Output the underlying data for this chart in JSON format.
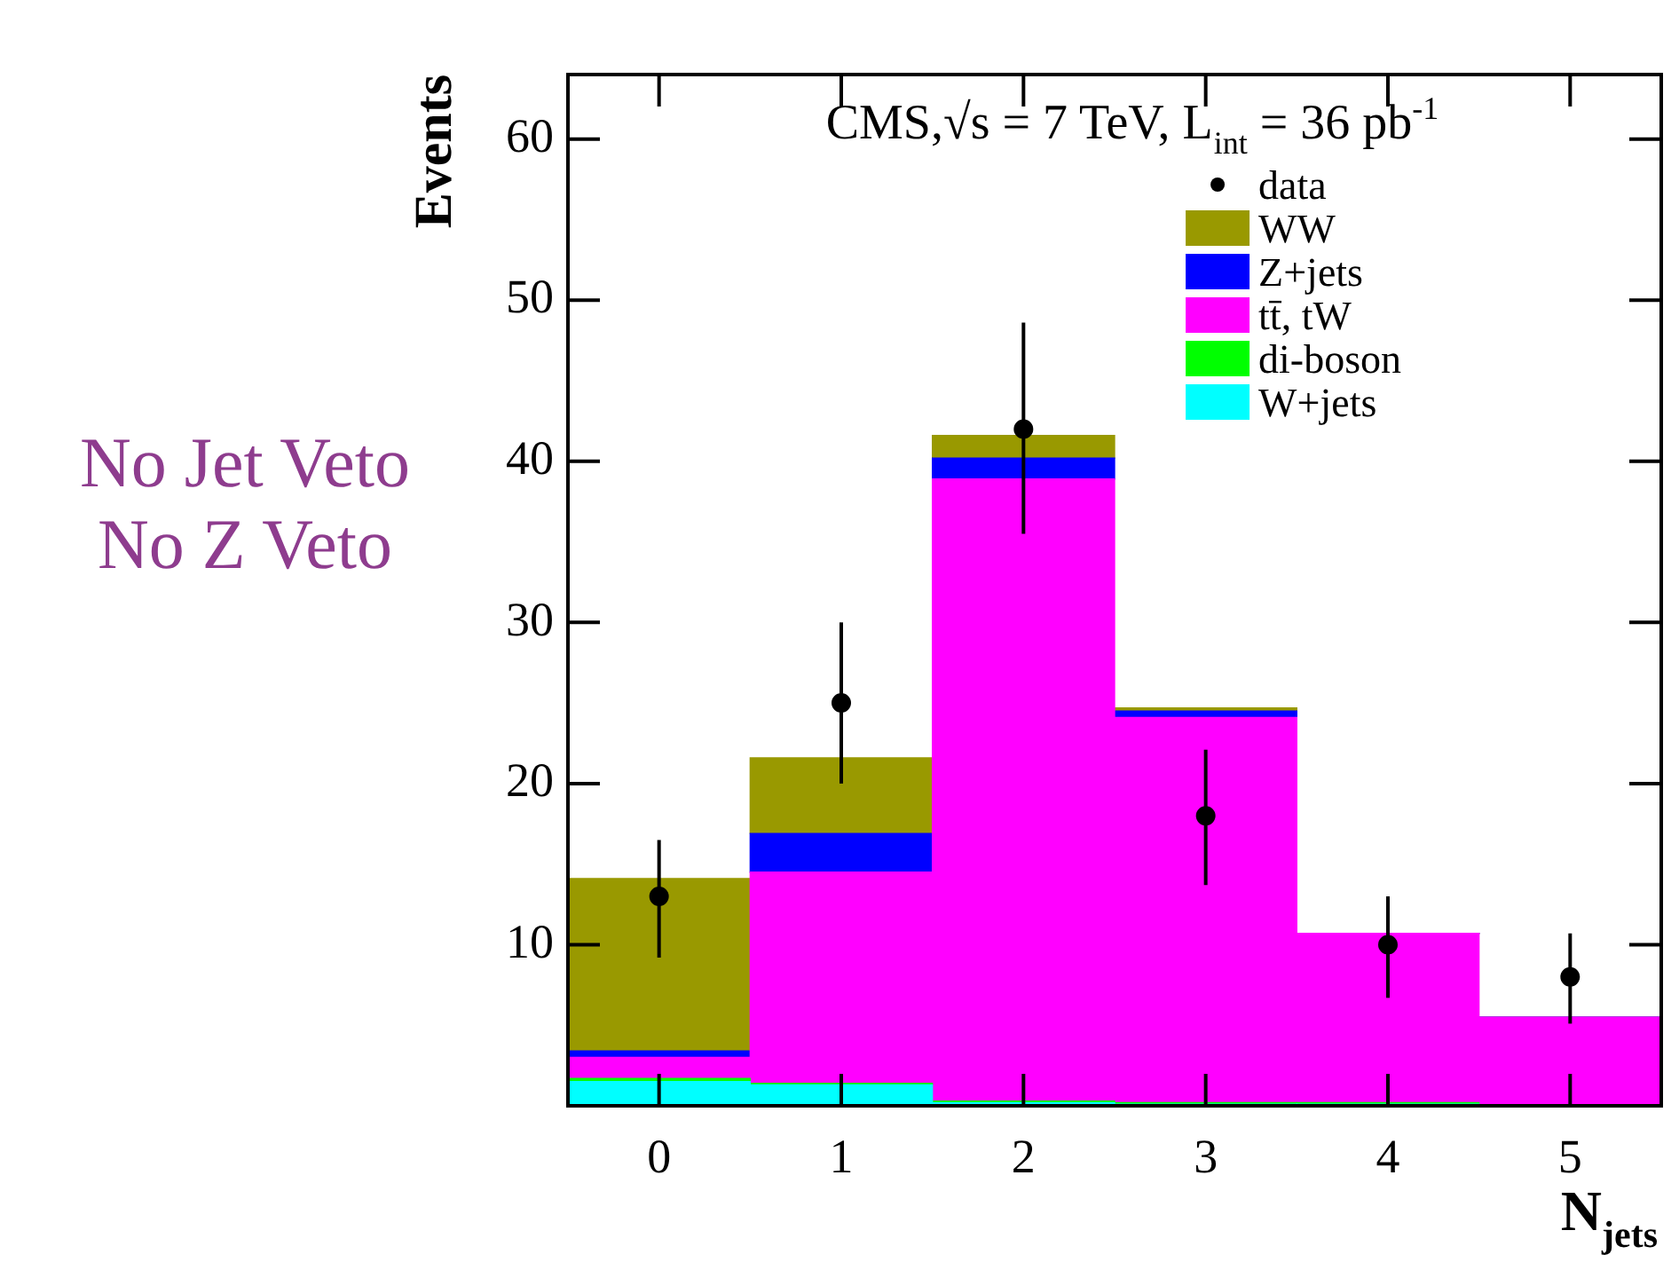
{
  "chart_data": {
    "type": "bar",
    "title": "CMS,√s = 7 TeV, L$_{int}$ = 36 pb$^{-1}$",
    "xlabel": "N$_{jets}$",
    "ylabel": "Events",
    "annotations": [
      "No Jet Veto",
      "No Z Veto"
    ],
    "categories": [
      "0",
      "1",
      "2",
      "3",
      "4",
      "5"
    ],
    "stacked": true,
    "series": [
      {
        "name": "W+jets",
        "color": "#00ffff",
        "values": [
          1.5,
          1.3,
          0.2,
          0.1,
          0.1,
          null
        ]
      },
      {
        "name": "di-boson",
        "color": "#00ff00",
        "values": [
          0.2,
          0.1,
          0.1,
          0.1,
          0.1,
          0
        ]
      },
      {
        "name": "tt̄, tW",
        "color": "#ff00ff",
        "values": [
          1.3,
          13.1,
          38.6,
          23.9,
          10.5,
          5.5
        ]
      },
      {
        "name": "Z+jets",
        "color": "#0000ff",
        "values": [
          0.4,
          2.4,
          1.3,
          0.4,
          0,
          0
        ]
      },
      {
        "name": "WW",
        "color": "#999900",
        "values": [
          10.7,
          4.7,
          1.4,
          0.2,
          0,
          0
        ]
      },
      {
        "name": "data",
        "type": "scatter",
        "color": "#000000",
        "marker": "circle",
        "x": [
          "0",
          "1",
          "2",
          "3",
          "4",
          "5"
        ],
        "values": [
          13,
          25,
          42,
          18,
          10,
          8
        ],
        "errors": [
          [
            9.2,
            16.5
          ],
          [
            20,
            30
          ],
          [
            35.5,
            48.6
          ],
          [
            13.7,
            22.1
          ],
          [
            6.7,
            13
          ],
          [
            5.1,
            10.7
          ]
        ]
      }
    ],
    "ylim": [
      0,
      64
    ],
    "yticks": [
      10,
      20,
      30,
      40,
      50,
      60
    ],
    "grid": false,
    "legend": "top right"
  }
}
